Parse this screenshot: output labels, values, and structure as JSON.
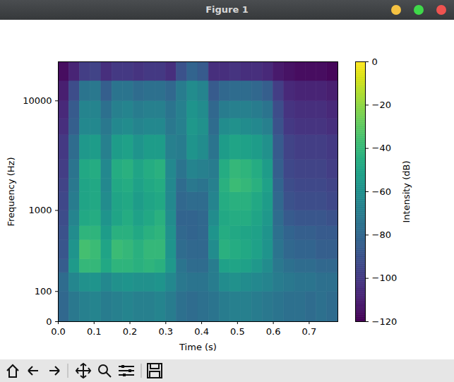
{
  "window": {
    "title": "Figure 1"
  },
  "chart_data": {
    "type": "heatmap",
    "xlabel": "Time (s)",
    "ylabel": "Frequency (Hz)",
    "color": "viridis",
    "log": "y",
    "xlim": [
      0,
      0.78
    ],
    "ylim": [
      0,
      22050
    ],
    "xticks": [
      {
        "value": 0,
        "label": "0.0"
      },
      {
        "value": 0.1,
        "label": "0.1"
      },
      {
        "value": 0.2,
        "label": "0.2"
      },
      {
        "value": 0.3,
        "label": "0.3"
      },
      {
        "value": 0.4,
        "label": "0.4"
      },
      {
        "value": 0.5,
        "label": "0.5"
      },
      {
        "value": 0.6,
        "label": "0.6"
      },
      {
        "value": 0.7,
        "label": "0.7"
      }
    ],
    "yticks": [
      0,
      100,
      1000,
      10000
    ],
    "x_edges": [
      0,
      0.03,
      0.06,
      0.09,
      0.12,
      0.15,
      0.18,
      0.21,
      0.24,
      0.27,
      0.3,
      0.33,
      0.36,
      0.39,
      0.42,
      0.45,
      0.48,
      0.51,
      0.54,
      0.57,
      0.6,
      0.63,
      0.66,
      0.69,
      0.72,
      0.75,
      0.78
    ],
    "y_edges": [
      0,
      100,
      200,
      300,
      500,
      700,
      1000,
      1500,
      2000,
      3000,
      5000,
      7000,
      10000,
      15000,
      22050
    ],
    "values": [
      [
        -80,
        -72,
        -68,
        -66,
        -70,
        -68,
        -66,
        -68,
        -68,
        -66,
        -70,
        -76,
        -78,
        -76,
        -74,
        -70,
        -68,
        -68,
        -70,
        -72,
        -74,
        -76,
        -76,
        -78,
        -76,
        -78
      ],
      [
        -78,
        -65,
        -60,
        -58,
        -64,
        -60,
        -58,
        -60,
        -60,
        -58,
        -64,
        -72,
        -74,
        -74,
        -70,
        -62,
        -60,
        -62,
        -64,
        -66,
        -70,
        -72,
        -74,
        -74,
        -76,
        -76
      ],
      [
        -85,
        -55,
        -40,
        -40,
        -48,
        -42,
        -42,
        -44,
        -42,
        -44,
        -56,
        -74,
        -78,
        -78,
        -70,
        -52,
        -50,
        -52,
        -56,
        -62,
        -72,
        -76,
        -78,
        -78,
        -80,
        -80
      ],
      [
        -88,
        -58,
        -36,
        -38,
        -50,
        -38,
        -40,
        -44,
        -40,
        -40,
        -58,
        -78,
        -80,
        -80,
        -62,
        -44,
        -46,
        -48,
        -52,
        -58,
        -74,
        -80,
        -82,
        -82,
        -84,
        -84
      ],
      [
        -90,
        -62,
        -42,
        -42,
        -54,
        -44,
        -44,
        -48,
        -44,
        -42,
        -60,
        -80,
        -82,
        -80,
        -58,
        -46,
        -48,
        -50,
        -52,
        -58,
        -76,
        -82,
        -84,
        -84,
        -86,
        -86
      ],
      [
        -92,
        -66,
        -48,
        -46,
        -58,
        -50,
        -46,
        -52,
        -48,
        -44,
        -62,
        -82,
        -82,
        -80,
        -62,
        -48,
        -46,
        -46,
        -50,
        -56,
        -78,
        -86,
        -88,
        -88,
        -88,
        -90
      ],
      [
        -94,
        -70,
        -50,
        -48,
        -62,
        -50,
        -48,
        -54,
        -50,
        -48,
        -64,
        -80,
        -78,
        -78,
        -66,
        -46,
        -44,
        -44,
        -48,
        -54,
        -80,
        -90,
        -92,
        -92,
        -92,
        -94
      ],
      [
        -96,
        -72,
        -50,
        -48,
        -64,
        -48,
        -46,
        -52,
        -48,
        -46,
        -64,
        -78,
        -72,
        -74,
        -68,
        -44,
        -38,
        -40,
        -44,
        -52,
        -82,
        -92,
        -94,
        -94,
        -94,
        -96
      ],
      [
        -98,
        -74,
        -48,
        -46,
        -64,
        -46,
        -44,
        -50,
        -46,
        -44,
        -64,
        -74,
        -66,
        -68,
        -70,
        -46,
        -40,
        -42,
        -46,
        -54,
        -84,
        -94,
        -96,
        -96,
        -96,
        -98
      ],
      [
        -100,
        -78,
        -56,
        -54,
        -68,
        -54,
        -52,
        -58,
        -54,
        -54,
        -68,
        -70,
        -58,
        -62,
        -74,
        -54,
        -50,
        -52,
        -54,
        -60,
        -86,
        -96,
        -98,
        -98,
        -98,
        -100
      ],
      [
        -104,
        -84,
        -64,
        -64,
        -72,
        -64,
        -62,
        -66,
        -64,
        -64,
        -72,
        -68,
        -56,
        -60,
        -78,
        -62,
        -60,
        -62,
        -64,
        -68,
        -90,
        -100,
        -102,
        -102,
        -102,
        -104
      ],
      [
        -106,
        -86,
        -66,
        -66,
        -76,
        -68,
        -66,
        -70,
        -68,
        -68,
        -74,
        -68,
        -58,
        -62,
        -80,
        -70,
        -68,
        -68,
        -70,
        -74,
        -92,
        -102,
        -104,
        -104,
        -104,
        -106
      ],
      [
        -110,
        -92,
        -74,
        -72,
        -84,
        -74,
        -74,
        -78,
        -76,
        -76,
        -80,
        -70,
        -62,
        -66,
        -86,
        -80,
        -78,
        -78,
        -80,
        -84,
        -98,
        -106,
        -108,
        -108,
        -108,
        -110
      ],
      [
        -116,
        -108,
        -98,
        -96,
        -104,
        -100,
        -100,
        -102,
        -100,
        -100,
        -104,
        -90,
        -82,
        -86,
        -104,
        -104,
        -102,
        -104,
        -104,
        -106,
        -112,
        -114,
        -116,
        -116,
        -116,
        -118
      ]
    ],
    "colorbar": {
      "label": "Intensity (dB)",
      "range": [
        -120,
        0
      ],
      "ticks": [
        -120,
        -100,
        -80,
        -60,
        -40,
        -20,
        0
      ]
    }
  }
}
